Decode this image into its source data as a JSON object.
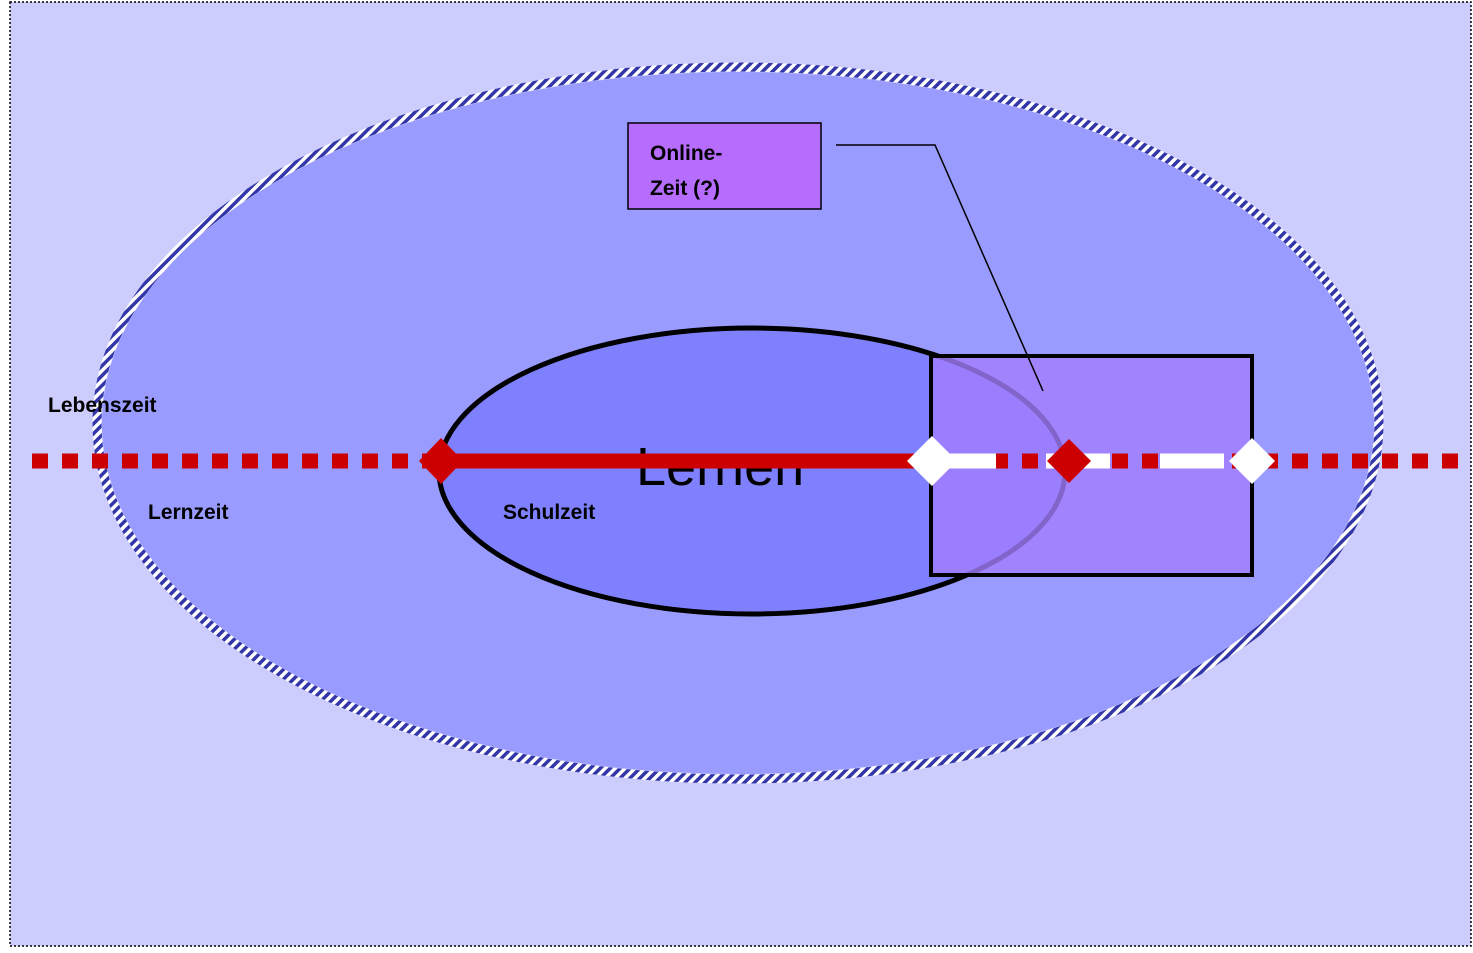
{
  "labels": {
    "lebenszeit": "Lebenszeit",
    "lernzeit": "Lernzeit",
    "schulzeit": "Schulzeit",
    "lernen": "Lernen",
    "online_line1": "Online-",
    "online_line2": "Zeit (?)"
  },
  "colors": {
    "background": "#cccdfd",
    "outer_ellipse_fill": "#999bfe",
    "outer_ellipse_stripe_a": "#3336a8",
    "outer_ellipse_stripe_b": "#ffffff",
    "inner_ellipse_fill": "#7f80fe",
    "rect_fill": "#a37dfd",
    "callout_fill": "#b66cfd",
    "timeline_red": "#cc0000",
    "marker_white": "#ffffff",
    "outline": "#000000"
  },
  "icons": {
    "marker_shape": "diamond"
  }
}
